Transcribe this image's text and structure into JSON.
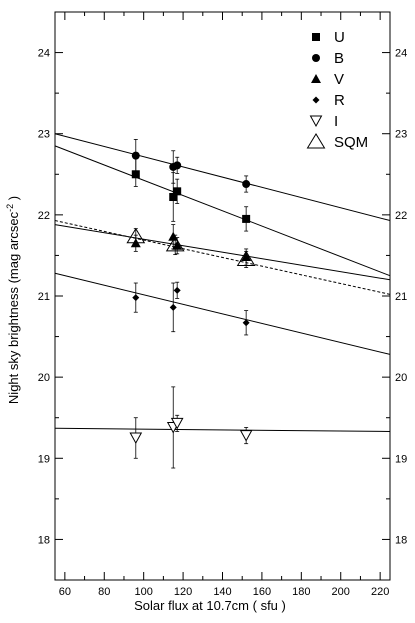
{
  "chart_data": {
    "type": "scatter",
    "title": "",
    "xlabel": "Solar flux at 10.7cm  ( sfu )",
    "ylabel_main": "Night sky brightness (mag  arcsec",
    "ylabel_sup": "-2",
    "ylabel_close": " )",
    "xlim": [
      55,
      225
    ],
    "ylim": [
      17.5,
      24.5
    ],
    "xticks": [
      60,
      80,
      100,
      120,
      140,
      160,
      180,
      200,
      220
    ],
    "yticks": [
      18,
      19,
      20,
      21,
      22,
      23,
      24
    ],
    "grid": false,
    "legend_position": "top-right",
    "series": [
      {
        "name": "U",
        "marker": "square",
        "points": [
          {
            "x": 96,
            "y": 22.5,
            "err_low": 0.15,
            "err_high": 0.2
          },
          {
            "x": 115,
            "y": 22.22,
            "err_low": 0.3,
            "err_high": 0.3
          },
          {
            "x": 117,
            "y": 22.29,
            "err_low": 0.15,
            "err_high": 0.15
          },
          {
            "x": 152,
            "y": 21.95,
            "err_low": 0.15,
            "err_high": 0.15
          }
        ],
        "fit": {
          "x": [
            55,
            225
          ],
          "y": [
            22.85,
            21.25
          ],
          "style": "solid"
        }
      },
      {
        "name": "B",
        "marker": "circle",
        "points": [
          {
            "x": 96,
            "y": 22.73,
            "err_low": 0.2,
            "err_high": 0.2
          },
          {
            "x": 115,
            "y": 22.59,
            "err_low": 0.2,
            "err_high": 0.2
          },
          {
            "x": 117,
            "y": 22.61,
            "err_low": 0.1,
            "err_high": 0.1
          },
          {
            "x": 152,
            "y": 22.38,
            "err_low": 0.1,
            "err_high": 0.1
          }
        ],
        "fit": {
          "x": [
            55,
            225
          ],
          "y": [
            23.0,
            21.93
          ],
          "style": "solid"
        }
      },
      {
        "name": "V",
        "marker": "triangle",
        "points": [
          {
            "x": 96,
            "y": 21.65,
            "err_low": 0.1,
            "err_high": 0.1
          },
          {
            "x": 115,
            "y": 21.73,
            "err_low": 0.15,
            "err_high": 0.15
          },
          {
            "x": 117,
            "y": 21.62,
            "err_low": 0.1,
            "err_high": 0.1
          },
          {
            "x": 152,
            "y": 21.48,
            "err_low": 0.1,
            "err_high": 0.1
          }
        ],
        "fit": {
          "x": [
            55,
            225
          ],
          "y": [
            21.88,
            21.2
          ],
          "style": "solid"
        }
      },
      {
        "name": "R",
        "marker": "diamond",
        "points": [
          {
            "x": 96,
            "y": 20.98,
            "err_low": 0.18,
            "err_high": 0.18
          },
          {
            "x": 115,
            "y": 20.86,
            "err_low": 0.3,
            "err_high": 0.3
          },
          {
            "x": 117,
            "y": 21.07,
            "err_low": 0.1,
            "err_high": 0.1
          },
          {
            "x": 152,
            "y": 20.67,
            "err_low": 0.15,
            "err_high": 0.15
          }
        ],
        "fit": {
          "x": [
            55,
            225
          ],
          "y": [
            21.28,
            20.28
          ],
          "style": "solid"
        }
      },
      {
        "name": "I",
        "marker": "triangle-down-open",
        "points": [
          {
            "x": 96,
            "y": 19.25,
            "err_low": 0.25,
            "err_high": 0.25
          },
          {
            "x": 115,
            "y": 19.38,
            "err_low": 0.5,
            "err_high": 0.5
          },
          {
            "x": 117,
            "y": 19.43,
            "err_low": 0.1,
            "err_high": 0.1
          },
          {
            "x": 152,
            "y": 19.28,
            "err_low": 0.1,
            "err_high": 0.1
          }
        ],
        "fit": {
          "x": [
            55,
            225
          ],
          "y": [
            19.37,
            19.33
          ],
          "style": "solid"
        }
      },
      {
        "name": "SQM",
        "marker": "triangle-open",
        "points": [
          {
            "x": 96,
            "y": 21.73,
            "err_low": 0.1,
            "err_high": 0.1
          },
          {
            "x": 116,
            "y": 21.63,
            "err_low": 0.12,
            "err_high": 0.12
          },
          {
            "x": 152,
            "y": 21.45,
            "err_low": 0.1,
            "err_high": 0.1
          }
        ],
        "fit": {
          "x": [
            55,
            225
          ],
          "y": [
            21.93,
            21.02
          ],
          "style": "dashed"
        }
      }
    ]
  }
}
